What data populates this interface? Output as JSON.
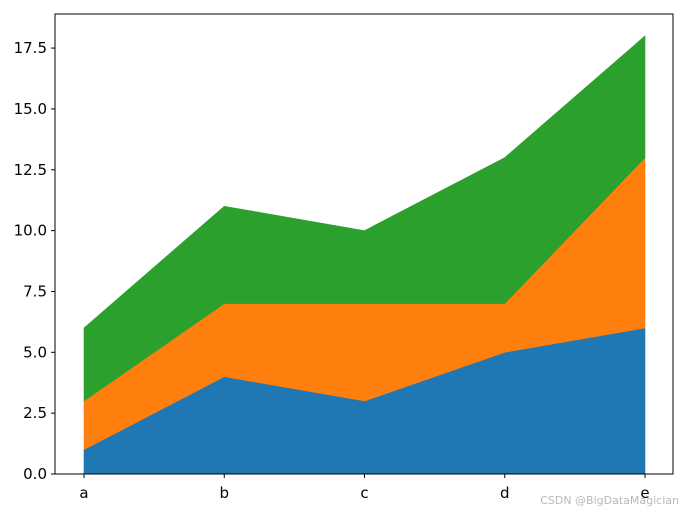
{
  "chart_data": {
    "type": "area",
    "stacked": true,
    "categories": [
      "a",
      "b",
      "c",
      "d",
      "e"
    ],
    "series": [
      {
        "values": [
          1,
          4,
          3,
          5,
          6
        ],
        "color": "#1f77b4"
      },
      {
        "values": [
          2,
          3,
          4,
          2,
          7
        ],
        "color": "#ff7f0e"
      },
      {
        "values": [
          3,
          4,
          3,
          6,
          5
        ],
        "color": "#2ca02c"
      }
    ],
    "ylim": [
      0,
      18.9
    ],
    "yticks": [
      "0.0",
      "2.5",
      "5.0",
      "7.5",
      "10.0",
      "12.5",
      "15.0",
      "17.5"
    ],
    "title": "",
    "xlabel": "",
    "ylabel": "",
    "grid": false,
    "legend": "none"
  },
  "watermark": "CSDN @BigDataMagician"
}
